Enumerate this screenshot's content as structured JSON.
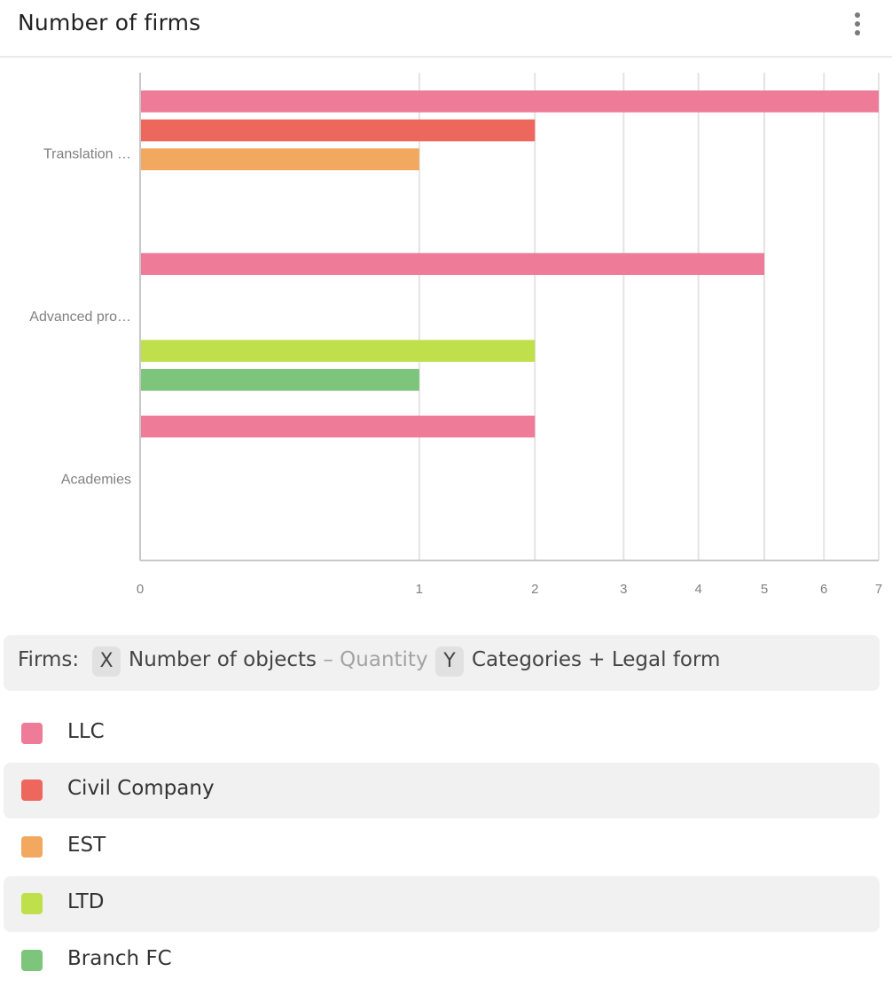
{
  "header": {
    "title": "Number of firms",
    "menu_icon": "vertical-ellipsis-icon"
  },
  "formula": {
    "prefix": "Firms",
    "x_badge": "X",
    "x_text": "Number of objects",
    "x_suffix": "– Quantity",
    "y_badge": "Y",
    "y_text": "Categories + Legal form"
  },
  "colors": {
    "LLC": "#ee7b97",
    "Civil Company": "#ee675c",
    "EST": "#f2a85e",
    "LTD": "#c0e04b",
    "Branch FC": "#7cc57b"
  },
  "legend": [
    {
      "label": "LLC",
      "color": "#ee7b97"
    },
    {
      "label": "Civil Company",
      "color": "#ee675c"
    },
    {
      "label": "EST",
      "color": "#f2a85e"
    },
    {
      "label": "LTD",
      "color": "#c0e04b"
    },
    {
      "label": "Branch FC",
      "color": "#7cc57b"
    }
  ],
  "chart_data": {
    "type": "bar",
    "orientation": "horizontal",
    "x_scale": "sqrt",
    "xlim": [
      0,
      7
    ],
    "x_ticks": [
      0,
      1,
      2,
      3,
      4,
      5,
      6,
      7
    ],
    "grid": true,
    "categories": [
      "Translation …",
      "Advanced pro…",
      "Academies"
    ],
    "series": [
      {
        "name": "LLC",
        "values": [
          7,
          5,
          2
        ]
      },
      {
        "name": "Civil Company",
        "values": [
          2,
          0,
          0
        ]
      },
      {
        "name": "EST",
        "values": [
          1,
          0,
          0
        ]
      },
      {
        "name": "LTD",
        "values": [
          0,
          2,
          0
        ]
      },
      {
        "name": "Branch FC",
        "values": [
          0,
          1,
          0
        ]
      }
    ]
  }
}
